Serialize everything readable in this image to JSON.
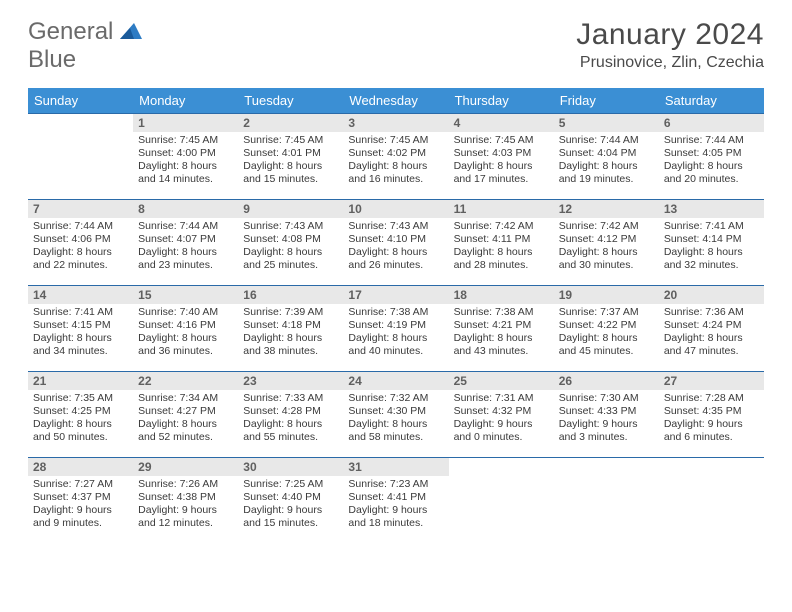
{
  "logo": {
    "part1": "General",
    "part2": "Blue"
  },
  "colors": {
    "header_bg": "#3b8fd4",
    "header_text": "#ffffff",
    "daynum_bg": "#e8e8e8",
    "rule": "#2a6aa8",
    "logo_gray": "#6a6a6a",
    "logo_blue": "#2e7cc4"
  },
  "title": "January 2024",
  "location": "Prusinovice, Zlin, Czechia",
  "weekdays": [
    "Sunday",
    "Monday",
    "Tuesday",
    "Wednesday",
    "Thursday",
    "Friday",
    "Saturday"
  ],
  "first_weekday_index": 1,
  "days": [
    {
      "n": 1,
      "sunrise": "7:45 AM",
      "sunset": "4:00 PM",
      "daylight": "8 hours and 14 minutes."
    },
    {
      "n": 2,
      "sunrise": "7:45 AM",
      "sunset": "4:01 PM",
      "daylight": "8 hours and 15 minutes."
    },
    {
      "n": 3,
      "sunrise": "7:45 AM",
      "sunset": "4:02 PM",
      "daylight": "8 hours and 16 minutes."
    },
    {
      "n": 4,
      "sunrise": "7:45 AM",
      "sunset": "4:03 PM",
      "daylight": "8 hours and 17 minutes."
    },
    {
      "n": 5,
      "sunrise": "7:44 AM",
      "sunset": "4:04 PM",
      "daylight": "8 hours and 19 minutes."
    },
    {
      "n": 6,
      "sunrise": "7:44 AM",
      "sunset": "4:05 PM",
      "daylight": "8 hours and 20 minutes."
    },
    {
      "n": 7,
      "sunrise": "7:44 AM",
      "sunset": "4:06 PM",
      "daylight": "8 hours and 22 minutes."
    },
    {
      "n": 8,
      "sunrise": "7:44 AM",
      "sunset": "4:07 PM",
      "daylight": "8 hours and 23 minutes."
    },
    {
      "n": 9,
      "sunrise": "7:43 AM",
      "sunset": "4:08 PM",
      "daylight": "8 hours and 25 minutes."
    },
    {
      "n": 10,
      "sunrise": "7:43 AM",
      "sunset": "4:10 PM",
      "daylight": "8 hours and 26 minutes."
    },
    {
      "n": 11,
      "sunrise": "7:42 AM",
      "sunset": "4:11 PM",
      "daylight": "8 hours and 28 minutes."
    },
    {
      "n": 12,
      "sunrise": "7:42 AM",
      "sunset": "4:12 PM",
      "daylight": "8 hours and 30 minutes."
    },
    {
      "n": 13,
      "sunrise": "7:41 AM",
      "sunset": "4:14 PM",
      "daylight": "8 hours and 32 minutes."
    },
    {
      "n": 14,
      "sunrise": "7:41 AM",
      "sunset": "4:15 PM",
      "daylight": "8 hours and 34 minutes."
    },
    {
      "n": 15,
      "sunrise": "7:40 AM",
      "sunset": "4:16 PM",
      "daylight": "8 hours and 36 minutes."
    },
    {
      "n": 16,
      "sunrise": "7:39 AM",
      "sunset": "4:18 PM",
      "daylight": "8 hours and 38 minutes."
    },
    {
      "n": 17,
      "sunrise": "7:38 AM",
      "sunset": "4:19 PM",
      "daylight": "8 hours and 40 minutes."
    },
    {
      "n": 18,
      "sunrise": "7:38 AM",
      "sunset": "4:21 PM",
      "daylight": "8 hours and 43 minutes."
    },
    {
      "n": 19,
      "sunrise": "7:37 AM",
      "sunset": "4:22 PM",
      "daylight": "8 hours and 45 minutes."
    },
    {
      "n": 20,
      "sunrise": "7:36 AM",
      "sunset": "4:24 PM",
      "daylight": "8 hours and 47 minutes."
    },
    {
      "n": 21,
      "sunrise": "7:35 AM",
      "sunset": "4:25 PM",
      "daylight": "8 hours and 50 minutes."
    },
    {
      "n": 22,
      "sunrise": "7:34 AM",
      "sunset": "4:27 PM",
      "daylight": "8 hours and 52 minutes."
    },
    {
      "n": 23,
      "sunrise": "7:33 AM",
      "sunset": "4:28 PM",
      "daylight": "8 hours and 55 minutes."
    },
    {
      "n": 24,
      "sunrise": "7:32 AM",
      "sunset": "4:30 PM",
      "daylight": "8 hours and 58 minutes."
    },
    {
      "n": 25,
      "sunrise": "7:31 AM",
      "sunset": "4:32 PM",
      "daylight": "9 hours and 0 minutes."
    },
    {
      "n": 26,
      "sunrise": "7:30 AM",
      "sunset": "4:33 PM",
      "daylight": "9 hours and 3 minutes."
    },
    {
      "n": 27,
      "sunrise": "7:28 AM",
      "sunset": "4:35 PM",
      "daylight": "9 hours and 6 minutes."
    },
    {
      "n": 28,
      "sunrise": "7:27 AM",
      "sunset": "4:37 PM",
      "daylight": "9 hours and 9 minutes."
    },
    {
      "n": 29,
      "sunrise": "7:26 AM",
      "sunset": "4:38 PM",
      "daylight": "9 hours and 12 minutes."
    },
    {
      "n": 30,
      "sunrise": "7:25 AM",
      "sunset": "4:40 PM",
      "daylight": "9 hours and 15 minutes."
    },
    {
      "n": 31,
      "sunrise": "7:23 AM",
      "sunset": "4:41 PM",
      "daylight": "9 hours and 18 minutes."
    }
  ],
  "labels": {
    "sunrise": "Sunrise:",
    "sunset": "Sunset:",
    "daylight": "Daylight:"
  }
}
